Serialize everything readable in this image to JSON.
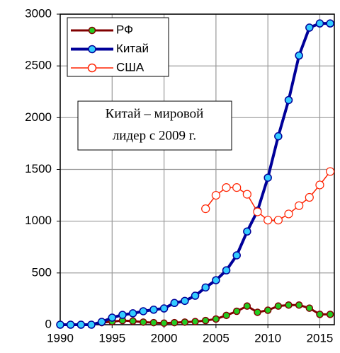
{
  "chart_data": {
    "type": "line",
    "x": [
      1990,
      1991,
      1992,
      1993,
      1994,
      1995,
      1996,
      1997,
      1998,
      1999,
      2000,
      2001,
      2002,
      2003,
      2004,
      2005,
      2006,
      2007,
      2008,
      2009,
      2010,
      2011,
      2012,
      2013,
      2014,
      2015,
      2016
    ],
    "series": [
      {
        "name": "РФ",
        "color": "#800000",
        "marker": "#22cc22",
        "values": [
          null,
          null,
          null,
          null,
          20,
          30,
          40,
          35,
          25,
          20,
          15,
          20,
          25,
          30,
          40,
          55,
          90,
          130,
          180,
          120,
          140,
          180,
          190,
          190,
          160,
          100,
          100
        ]
      },
      {
        "name": "Китай",
        "color": "#000099",
        "marker": "#33ccff",
        "values": [
          0,
          0,
          0,
          0,
          27,
          68,
          95,
          110,
          130,
          145,
          157,
          210,
          230,
          280,
          360,
          430,
          525,
          670,
          900,
          1100,
          1420,
          1820,
          2170,
          2600,
          2870,
          2910,
          2910
        ]
      },
      {
        "name": "США",
        "color": "#ff2200",
        "marker": "#ffffff",
        "values": [
          null,
          null,
          null,
          null,
          null,
          null,
          null,
          null,
          null,
          null,
          null,
          null,
          null,
          null,
          1120,
          1250,
          1325,
          1325,
          1260,
          1090,
          1010,
          1010,
          1070,
          1150,
          1230,
          1350,
          1480
        ]
      }
    ],
    "annotation": [
      "Китай – мировой",
      "лидер с 2009 г."
    ],
    "xlim": [
      1990,
      2016.4
    ],
    "xticks": [
      1990,
      1995,
      2000,
      2005,
      2010,
      2015
    ],
    "ylim": [
      0,
      3000
    ],
    "yticks": [
      0,
      500,
      1000,
      1500,
      2000,
      2500,
      3000
    ],
    "grid": true,
    "legend": "upper left"
  }
}
